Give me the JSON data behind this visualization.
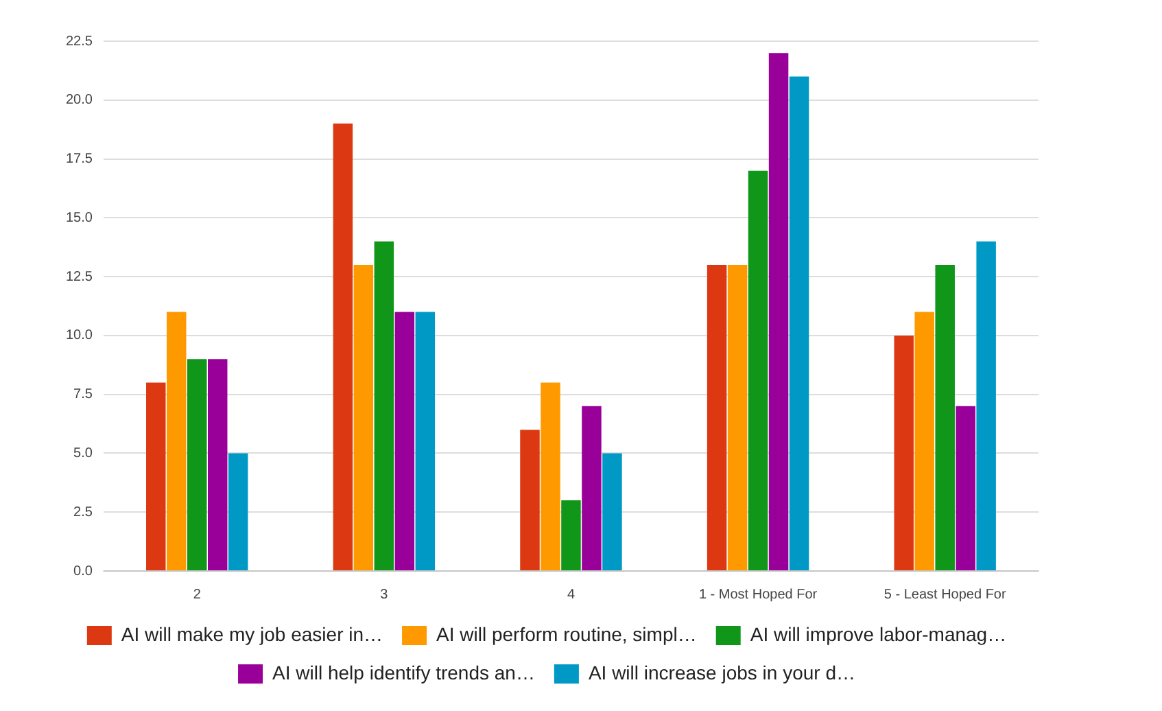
{
  "chart_data": {
    "type": "bar",
    "categories": [
      "2",
      "3",
      "4",
      "1 - Most Hoped For",
      "5 - Least Hoped For"
    ],
    "series": [
      {
        "name": "AI will make my job easier in…",
        "color": "#dc3912",
        "values": [
          8,
          19,
          6,
          13,
          10
        ]
      },
      {
        "name": "AI will perform routine, simpl…",
        "color": "#ff9900",
        "values": [
          11,
          13,
          8,
          13,
          11
        ]
      },
      {
        "name": "AI will improve labor-manag…",
        "color": "#109618",
        "values": [
          9,
          14,
          3,
          17,
          13
        ]
      },
      {
        "name": "AI will help identify trends an…",
        "color": "#990099",
        "values": [
          9,
          11,
          7,
          22,
          7
        ]
      },
      {
        "name": "AI will increase jobs in your d…",
        "color": "#0099c6",
        "values": [
          5,
          11,
          5,
          21,
          14
        ]
      }
    ],
    "ylim": [
      0,
      22.5
    ],
    "yticks": [
      {
        "value": 0,
        "label": "0.0"
      },
      {
        "value": 2.5,
        "label": "2.5"
      },
      {
        "value": 5,
        "label": "5.0"
      },
      {
        "value": 7.5,
        "label": "7.5"
      },
      {
        "value": 10,
        "label": "10.0"
      },
      {
        "value": 12.5,
        "label": "12.5"
      },
      {
        "value": 15,
        "label": "15.0"
      },
      {
        "value": 17.5,
        "label": "17.5"
      },
      {
        "value": 20,
        "label": "20.0"
      },
      {
        "value": 22.5,
        "label": "22.5"
      }
    ],
    "grid": "y",
    "legend": "bottom"
  }
}
